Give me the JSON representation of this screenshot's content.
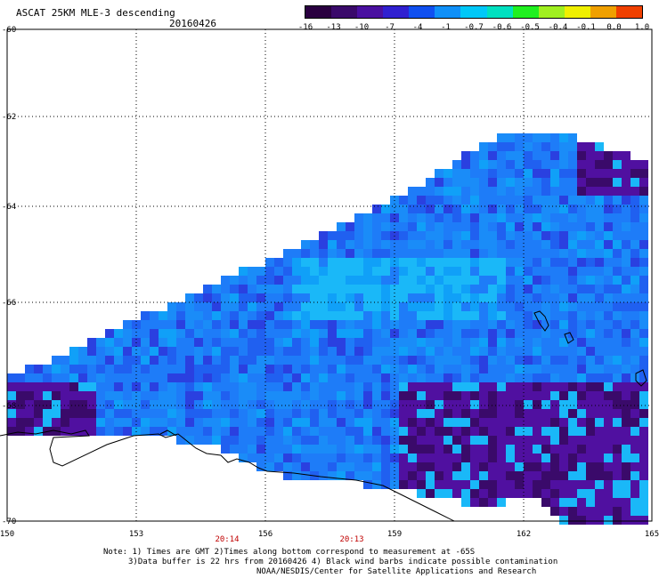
{
  "title": "ASCAT 25KM MLE-3 descending",
  "date": "20160426",
  "colorbar": {
    "labels": [
      "-16",
      "-13",
      "-10",
      "-7",
      "-4",
      "-1",
      "-0.7",
      "-0.6",
      "-0.5",
      "-0.4",
      "-0.1",
      "0.0",
      "1.0"
    ],
    "colors": [
      "#2a0040",
      "#3a0a6a",
      "#4a10a0",
      "#3020d0",
      "#1050f0",
      "#1090f8",
      "#00c8f8",
      "#00e0c0",
      "#20f020",
      "#a0f020",
      "#f0f000",
      "#f0a000",
      "#f04000"
    ]
  },
  "axes": {
    "lat_labels": [
      "-60",
      "-62",
      "-64",
      "-66",
      "-68",
      "-70"
    ],
    "lon_labels": [
      "150",
      "153",
      "156",
      "159",
      "162",
      "165"
    ]
  },
  "times": [
    "20:14",
    "20:13"
  ],
  "notes": [
    "Note: 1) Times are GMT 2)Times along bottom correspond to measurement at -65S",
    "3)Data buffer is 22 hrs from 20160426 4) Black wind barbs indicate possible contamination",
    "NOAA/NESDIS/Center for Satellite Applications and Research"
  ]
}
